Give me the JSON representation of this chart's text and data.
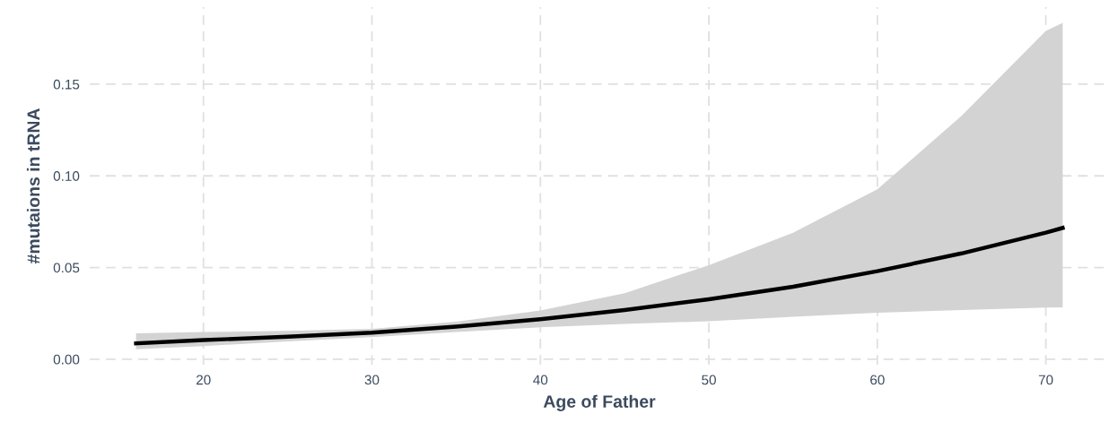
{
  "chart_data": {
    "type": "line",
    "xlabel": "Age of Father",
    "ylabel": "#mutaions in tRNA",
    "xlim": [
      13.25,
      73.75
    ],
    "xticks": [
      20,
      30,
      40,
      50,
      60,
      70
    ],
    "ylim": [
      -0.003,
      0.192
    ],
    "yticks": [
      {
        "value": 0,
        "label": "0.00"
      },
      {
        "value": 0.05,
        "label": "0.05"
      },
      {
        "value": 0.1,
        "label": "0.10"
      },
      {
        "value": 0.15,
        "label": "0.15"
      }
    ],
    "grid": true,
    "line_style": "solid",
    "marker": "none",
    "series": [
      {
        "color": "#000000",
        "x": [
          16,
          20,
          25,
          30,
          35,
          40,
          45,
          50,
          55,
          60,
          65,
          70,
          71
        ],
        "values": [
          0.0086,
          0.0104,
          0.0123,
          0.0145,
          0.0178,
          0.0218,
          0.0268,
          0.0327,
          0.0395,
          0.048,
          0.0577,
          0.069,
          0.0716
        ],
        "lower": [
          0.0054,
          0.0072,
          0.0097,
          0.012,
          0.0148,
          0.0174,
          0.0192,
          0.0207,
          0.0232,
          0.0253,
          0.0268,
          0.0281,
          0.0283
        ],
        "upper": [
          0.0141,
          0.0148,
          0.0155,
          0.0165,
          0.0205,
          0.0266,
          0.036,
          0.0513,
          0.069,
          0.0927,
          0.1327,
          0.179,
          0.1834
        ]
      }
    ]
  }
}
